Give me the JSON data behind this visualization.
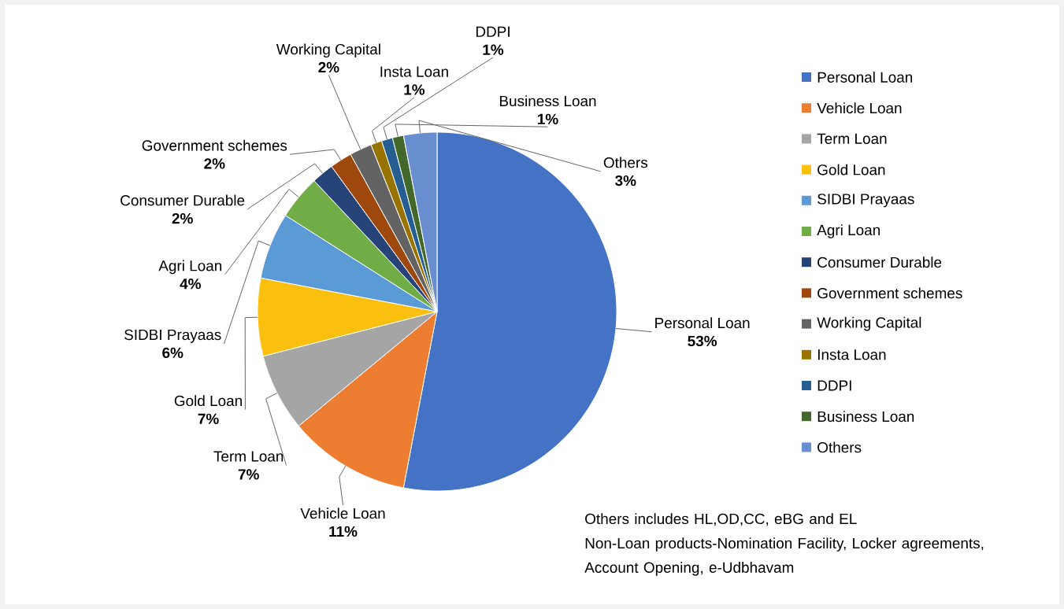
{
  "chart_data": {
    "type": "pie",
    "categories": [
      "Personal Loan",
      "Vehicle Loan",
      "Term Loan",
      "Gold Loan",
      "SIDBI Prayaas",
      "Agri Loan",
      "Consumer Durable",
      "Government schemes",
      "Working Capital",
      "Insta Loan",
      "DDPI",
      "Business Loan",
      "Others"
    ],
    "values": [
      53,
      11,
      7,
      7,
      6,
      4,
      2,
      2,
      2,
      1,
      1,
      1,
      3
    ],
    "value_labels": [
      "53%",
      "11%",
      "7%",
      "7%",
      "6%",
      "4%",
      "2%",
      "2%",
      "2%",
      "1%",
      "1%",
      "1%",
      "3%"
    ],
    "colors": [
      "#4472c4",
      "#ed7d31",
      "#a5a5a5",
      "#fbbf0f",
      "#5b9bd5",
      "#70ad47",
      "#264478",
      "#9e480e",
      "#636363",
      "#997300",
      "#255e91",
      "#43682b",
      "#698ed0"
    ],
    "legend": "right",
    "annotations": [
      "Others includes HL,OD,CC, eBG and EL",
      "Non-Loan products-Nomination Facility, Locker agreements, Account Opening, e-Udbhavam"
    ]
  }
}
